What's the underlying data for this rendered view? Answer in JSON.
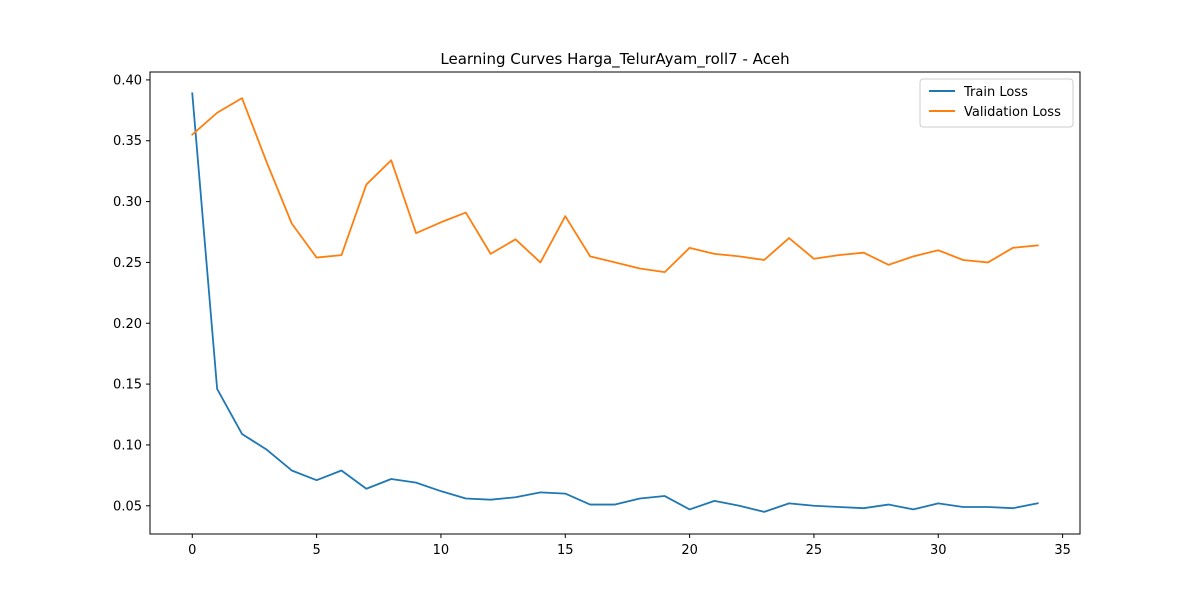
{
  "chart_data": {
    "type": "line",
    "title": "Learning Curves Harga_TelurAyam_roll7 - Aceh",
    "xlabel": "",
    "ylabel": "",
    "xlim": [
      -1.7,
      35.7
    ],
    "ylim": [
      0.0268,
      0.4065
    ],
    "xticks": [
      0,
      5,
      10,
      15,
      20,
      25,
      30,
      35
    ],
    "xtick_labels": [
      "0",
      "5",
      "10",
      "15",
      "20",
      "25",
      "30",
      "35"
    ],
    "yticks": [
      0.05,
      0.1,
      0.15,
      0.2,
      0.25,
      0.3,
      0.35,
      0.4
    ],
    "ytick_labels": [
      "0.05",
      "0.10",
      "0.15",
      "0.20",
      "0.25",
      "0.30",
      "0.35",
      "0.40"
    ],
    "grid": false,
    "legend_position": "top-right",
    "x": [
      0,
      1,
      2,
      3,
      4,
      5,
      6,
      7,
      8,
      9,
      10,
      11,
      12,
      13,
      14,
      15,
      16,
      17,
      18,
      19,
      20,
      21,
      22,
      23,
      24,
      25,
      26,
      27,
      28,
      29,
      30,
      31,
      32,
      33,
      34
    ],
    "series": [
      {
        "name": "Train Loss",
        "color": "#1f77b4",
        "values": [
          0.389,
          0.146,
          0.109,
          0.096,
          0.079,
          0.071,
          0.079,
          0.064,
          0.072,
          0.069,
          0.062,
          0.056,
          0.055,
          0.057,
          0.061,
          0.06,
          0.051,
          0.051,
          0.056,
          0.058,
          0.047,
          0.054,
          0.05,
          0.045,
          0.052,
          0.05,
          0.049,
          0.048,
          0.051,
          0.047,
          0.052,
          0.049,
          0.049,
          0.048,
          0.052
        ]
      },
      {
        "name": "Validation Loss",
        "color": "#ff7f0e",
        "values": [
          0.355,
          0.373,
          0.385,
          0.332,
          0.282,
          0.254,
          0.256,
          0.314,
          0.334,
          0.274,
          0.283,
          0.291,
          0.257,
          0.269,
          0.25,
          0.288,
          0.255,
          0.25,
          0.245,
          0.242,
          0.262,
          0.257,
          0.255,
          0.252,
          0.27,
          0.253,
          0.256,
          0.258,
          0.248,
          0.255,
          0.26,
          0.252,
          0.25,
          0.262,
          0.264
        ]
      }
    ]
  }
}
